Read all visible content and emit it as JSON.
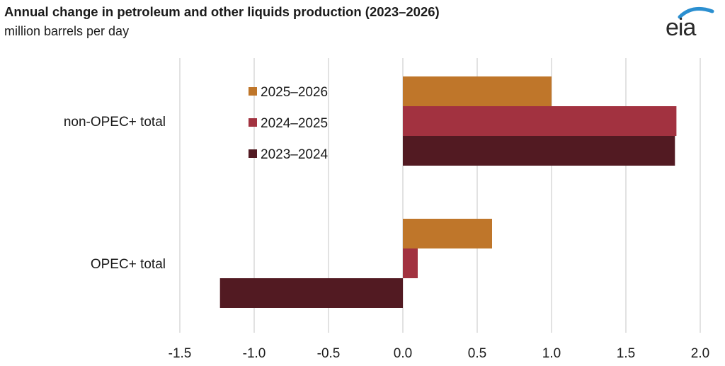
{
  "header": {
    "title": "Annual change in petroleum and other liquids production (2023–2026)",
    "subtitle": "million barrels per day",
    "logo_text": "eia"
  },
  "colors": {
    "2025–2026": "#bf762a",
    "2024–2025": "#a23240",
    "2023–2024": "#521a22",
    "grid": "#d9d9d9",
    "logo_arc": "#2b8fd0"
  },
  "chart_data": {
    "type": "bar",
    "orientation": "horizontal",
    "title": "Annual change in petroleum and other liquids production (2023–2026)",
    "subtitle": "million barrels per day",
    "categories": [
      "non-OPEC+ total",
      "OPEC+ total"
    ],
    "series": [
      {
        "name": "2025–2026",
        "values": [
          1.0,
          0.6
        ]
      },
      {
        "name": "2024–2025",
        "values": [
          1.84,
          0.1
        ]
      },
      {
        "name": "2023–2024",
        "values": [
          1.83,
          -1.23
        ]
      }
    ],
    "xlim": [
      -1.5,
      2.0
    ],
    "xticks": [
      "-1.5",
      "-1.0",
      "-0.5",
      "0.0",
      "0.5",
      "1.0",
      "1.5",
      "2.0"
    ],
    "grid": true,
    "legend_position": "inside-top-center"
  }
}
